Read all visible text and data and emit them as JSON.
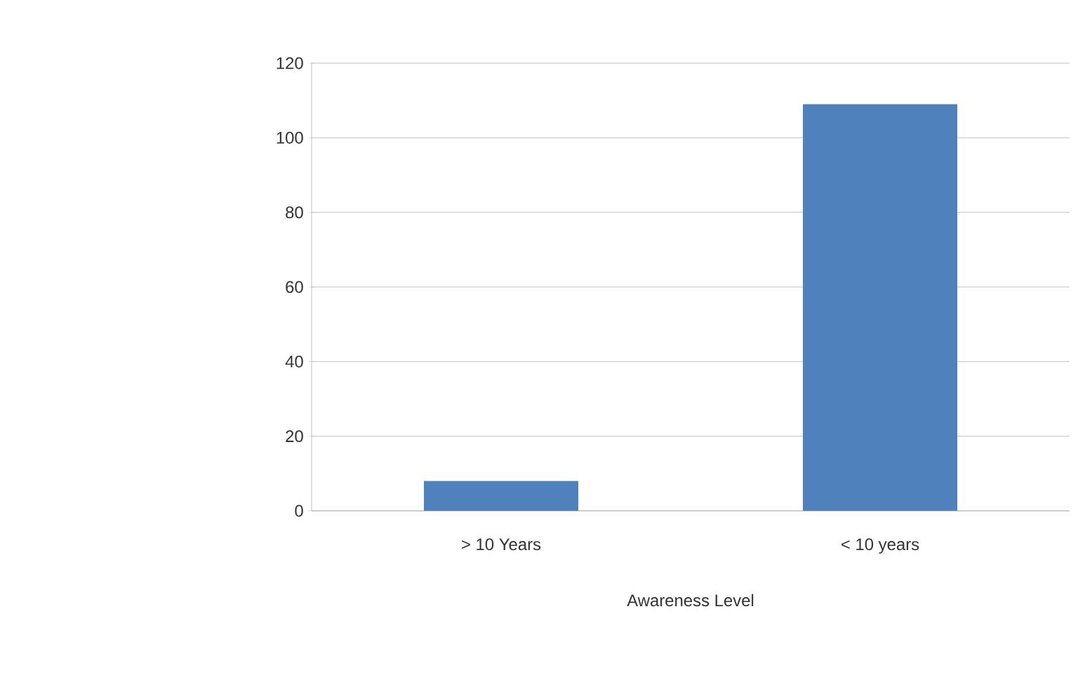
{
  "chart_data": {
    "type": "bar",
    "xlabel": "Awareness Level",
    "categories": [
      "> 10 Years",
      "< 10 years"
    ],
    "values": [
      8,
      109
    ],
    "color": "#4f81bd",
    "ylim": [
      0,
      120
    ],
    "yticks": [
      0,
      20,
      40,
      60,
      80,
      100,
      120
    ],
    "grid": "y"
  }
}
